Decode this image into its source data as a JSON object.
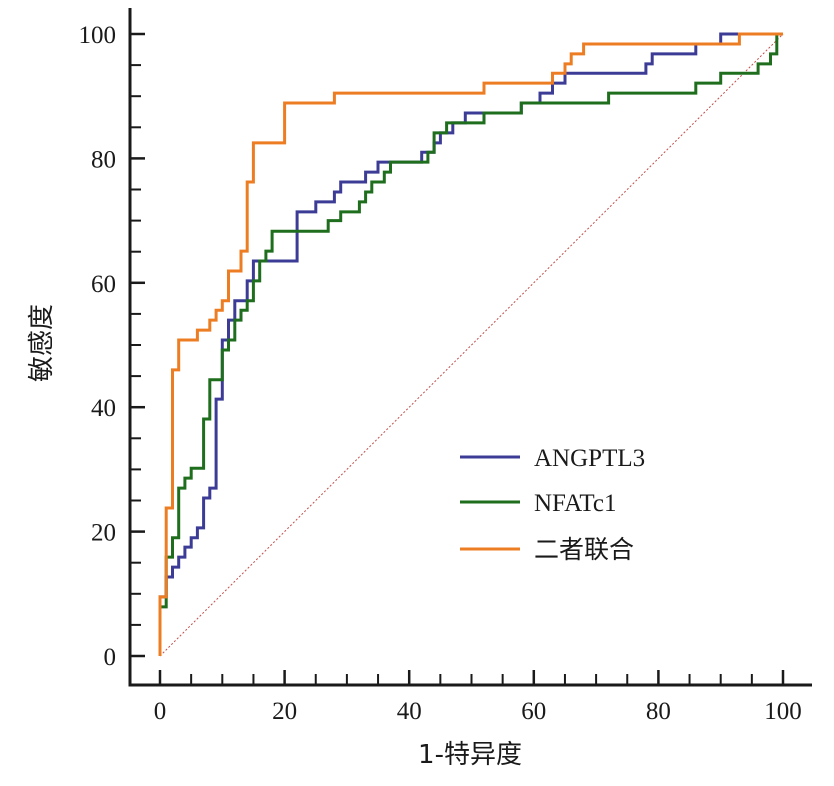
{
  "chart_data": {
    "type": "line",
    "title": "",
    "xlabel": "1-特异度",
    "ylabel": "敏感度",
    "xlim": [
      0,
      100
    ],
    "ylim": [
      0,
      100
    ],
    "x_ticks": [
      "0",
      "20",
      "40",
      "60",
      "80",
      "100"
    ],
    "y_ticks": [
      "0",
      "20",
      "40",
      "60",
      "80",
      "100"
    ],
    "grid": false,
    "legend_position": "lower-right",
    "reference_line": {
      "x": [
        0,
        100
      ],
      "y": [
        0,
        100
      ],
      "color": "#c0504d",
      "style": "dotted"
    },
    "series": [
      {
        "name": "ANGPTL3",
        "color": "#3c3c96",
        "points": [
          [
            0,
            0
          ],
          [
            0,
            9.5
          ],
          [
            1,
            9.5
          ],
          [
            1,
            12.7
          ],
          [
            2,
            12.7
          ],
          [
            2,
            14.3
          ],
          [
            3,
            14.3
          ],
          [
            3,
            15.9
          ],
          [
            4,
            15.9
          ],
          [
            4,
            17.5
          ],
          [
            5,
            17.5
          ],
          [
            5,
            19
          ],
          [
            6,
            19
          ],
          [
            6,
            20.6
          ],
          [
            7,
            20.6
          ],
          [
            7,
            25.4
          ],
          [
            8,
            25.4
          ],
          [
            8,
            27
          ],
          [
            9,
            27
          ],
          [
            9,
            41.3
          ],
          [
            10,
            41.3
          ],
          [
            10,
            50.8
          ],
          [
            11,
            50.8
          ],
          [
            11,
            54
          ],
          [
            12,
            54
          ],
          [
            12,
            57.1
          ],
          [
            14,
            57.1
          ],
          [
            14,
            60.3
          ],
          [
            15,
            60.3
          ],
          [
            15,
            63.5
          ],
          [
            22,
            63.5
          ],
          [
            22,
            71.4
          ],
          [
            25,
            71.4
          ],
          [
            25,
            73
          ],
          [
            28,
            73
          ],
          [
            28,
            74.6
          ],
          [
            29,
            74.6
          ],
          [
            29,
            76.2
          ],
          [
            33,
            76.2
          ],
          [
            33,
            77.8
          ],
          [
            35,
            77.8
          ],
          [
            35,
            79.4
          ],
          [
            42,
            79.4
          ],
          [
            42,
            81
          ],
          [
            44,
            81
          ],
          [
            44,
            82.5
          ],
          [
            45,
            82.5
          ],
          [
            45,
            84.1
          ],
          [
            47,
            84.1
          ],
          [
            47,
            85.7
          ],
          [
            49,
            85.7
          ],
          [
            49,
            87.3
          ],
          [
            58,
            87.3
          ],
          [
            58,
            88.9
          ],
          [
            61,
            88.9
          ],
          [
            61,
            90.5
          ],
          [
            63,
            90.5
          ],
          [
            63,
            92.1
          ],
          [
            65,
            92.1
          ],
          [
            65,
            93.7
          ],
          [
            78,
            93.7
          ],
          [
            78,
            95.2
          ],
          [
            79,
            95.2
          ],
          [
            79,
            96.8
          ],
          [
            86,
            96.8
          ],
          [
            86,
            98.4
          ],
          [
            90,
            98.4
          ],
          [
            90,
            100
          ],
          [
            100,
            100
          ]
        ]
      },
      {
        "name": "NFATc1",
        "color": "#1e6e1e",
        "points": [
          [
            0,
            0
          ],
          [
            0,
            7.9
          ],
          [
            1,
            7.9
          ],
          [
            1,
            15.9
          ],
          [
            2,
            15.9
          ],
          [
            2,
            19
          ],
          [
            3,
            19
          ],
          [
            3,
            27
          ],
          [
            4,
            27
          ],
          [
            4,
            28.6
          ],
          [
            5,
            28.6
          ],
          [
            5,
            30.2
          ],
          [
            7,
            30.2
          ],
          [
            7,
            38.1
          ],
          [
            8,
            38.1
          ],
          [
            8,
            44.4
          ],
          [
            10,
            44.4
          ],
          [
            10,
            49.2
          ],
          [
            11,
            49.2
          ],
          [
            11,
            50.8
          ],
          [
            12,
            50.8
          ],
          [
            12,
            54
          ],
          [
            13,
            54
          ],
          [
            13,
            55.6
          ],
          [
            14,
            55.6
          ],
          [
            14,
            57.1
          ],
          [
            15,
            57.1
          ],
          [
            15,
            60.3
          ],
          [
            16,
            60.3
          ],
          [
            16,
            63.5
          ],
          [
            17,
            63.5
          ],
          [
            17,
            65.1
          ],
          [
            18,
            65.1
          ],
          [
            18,
            68.3
          ],
          [
            27,
            68.3
          ],
          [
            27,
            70
          ],
          [
            29,
            70
          ],
          [
            29,
            71.4
          ],
          [
            32,
            71.4
          ],
          [
            32,
            73
          ],
          [
            33,
            73
          ],
          [
            33,
            74.6
          ],
          [
            34,
            74.6
          ],
          [
            34,
            76.2
          ],
          [
            36,
            76.2
          ],
          [
            36,
            77.8
          ],
          [
            37,
            77.8
          ],
          [
            37,
            79.4
          ],
          [
            43,
            79.4
          ],
          [
            43,
            81
          ],
          [
            44,
            81
          ],
          [
            44,
            84.1
          ],
          [
            46,
            84.1
          ],
          [
            46,
            85.7
          ],
          [
            52,
            85.7
          ],
          [
            52,
            87.3
          ],
          [
            58,
            87.3
          ],
          [
            58,
            88.9
          ],
          [
            72,
            88.9
          ],
          [
            72,
            90.5
          ],
          [
            86,
            90.5
          ],
          [
            86,
            92.1
          ],
          [
            90,
            92.1
          ],
          [
            90,
            93.7
          ],
          [
            96,
            93.7
          ],
          [
            96,
            95.2
          ],
          [
            98,
            95.2
          ],
          [
            98,
            96.8
          ],
          [
            99,
            96.8
          ],
          [
            99,
            100
          ],
          [
            100,
            100
          ]
        ]
      },
      {
        "name": "二者联合",
        "color": "#ed7d23",
        "points": [
          [
            0,
            0
          ],
          [
            0,
            9.5
          ],
          [
            1,
            9.5
          ],
          [
            1,
            23.8
          ],
          [
            2,
            23.8
          ],
          [
            2,
            46
          ],
          [
            3,
            46
          ],
          [
            3,
            50.8
          ],
          [
            6,
            50.8
          ],
          [
            6,
            52.4
          ],
          [
            8,
            52.4
          ],
          [
            8,
            54
          ],
          [
            9,
            54
          ],
          [
            9,
            55.6
          ],
          [
            10,
            55.6
          ],
          [
            10,
            57.1
          ],
          [
            11,
            57.1
          ],
          [
            11,
            61.9
          ],
          [
            13,
            61.9
          ],
          [
            13,
            65.1
          ],
          [
            14,
            65.1
          ],
          [
            14,
            76.2
          ],
          [
            15,
            76.2
          ],
          [
            15,
            82.5
          ],
          [
            20,
            82.5
          ],
          [
            20,
            88.9
          ],
          [
            28,
            88.9
          ],
          [
            28,
            90.5
          ],
          [
            52,
            90.5
          ],
          [
            52,
            92.1
          ],
          [
            63,
            92.1
          ],
          [
            63,
            93.7
          ],
          [
            65,
            93.7
          ],
          [
            65,
            95.2
          ],
          [
            66,
            95.2
          ],
          [
            66,
            96.8
          ],
          [
            68,
            96.8
          ],
          [
            68,
            98.4
          ],
          [
            93,
            98.4
          ],
          [
            93,
            100
          ],
          [
            100,
            100
          ]
        ]
      }
    ]
  }
}
